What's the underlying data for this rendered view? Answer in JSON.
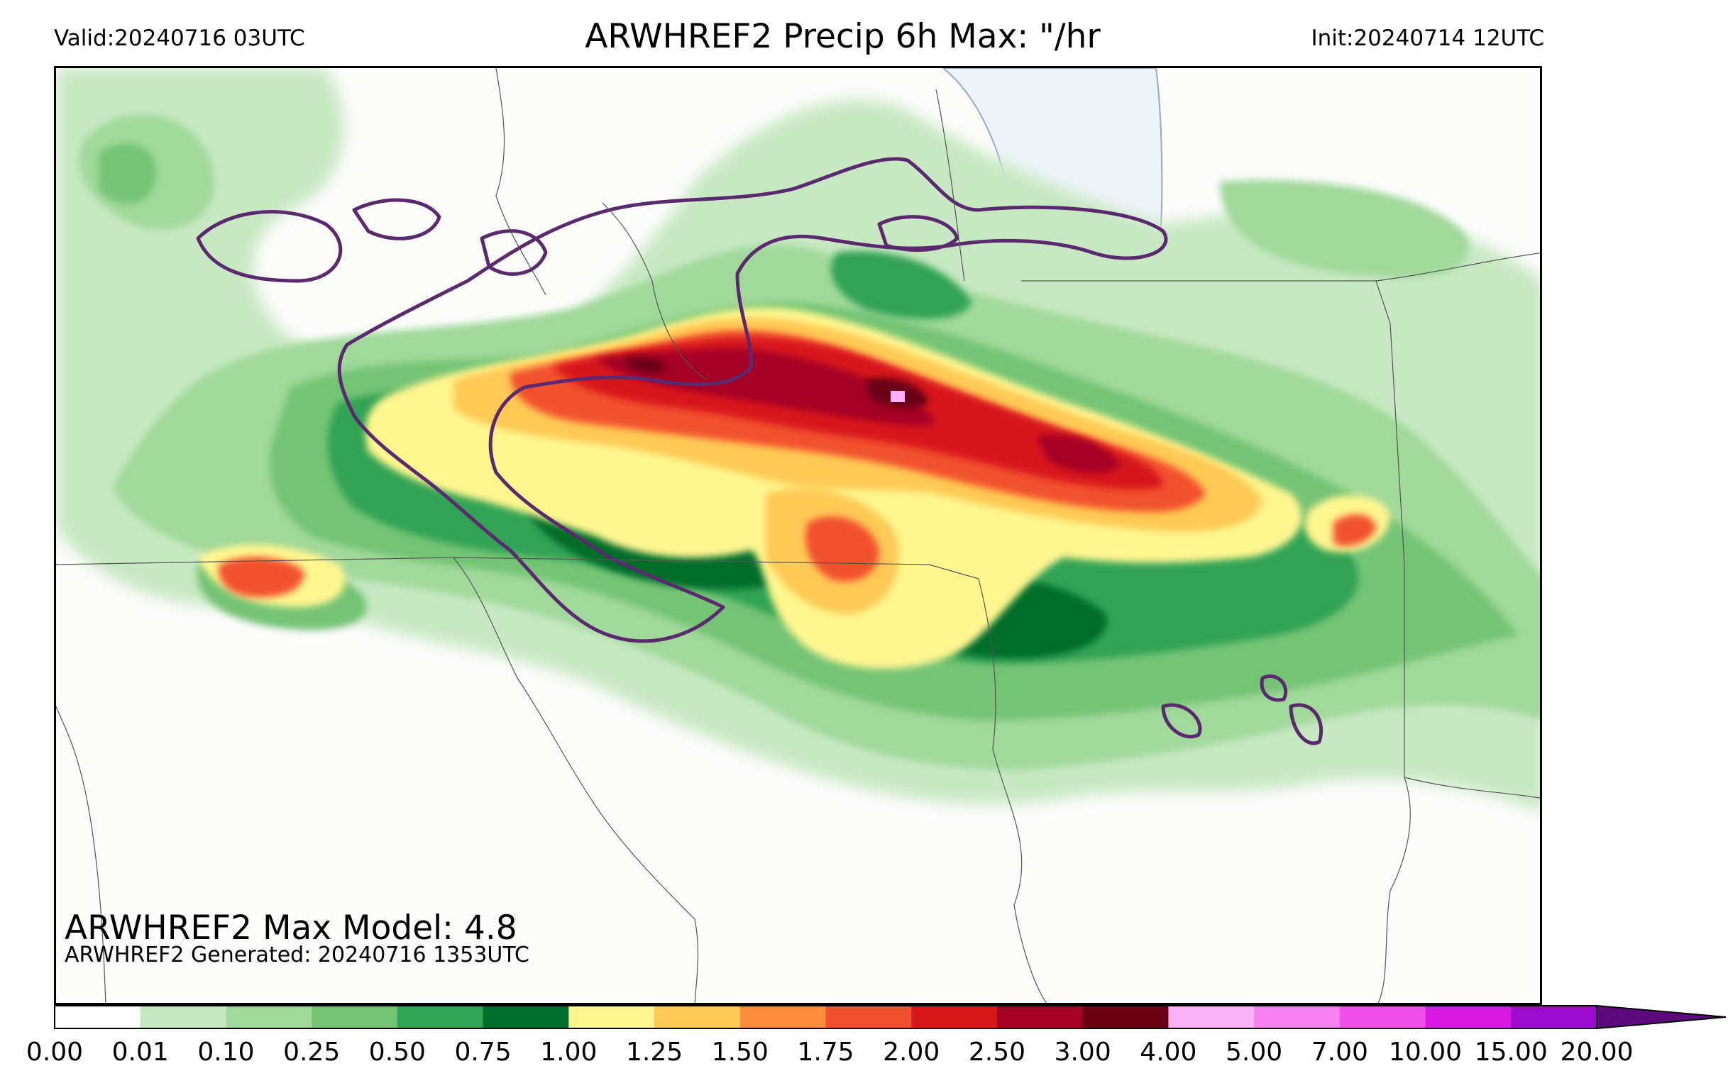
{
  "header": {
    "valid": "Valid:20240716 03UTC",
    "title": "ARWHREF2 Precip 6h Max: \"/hr",
    "init": "Init:20240714 12UTC"
  },
  "annotations": {
    "max_model": "ARWHREF2 Max Model: 4.8",
    "generated": "ARWHREF2 Generated: 20240716 1353UTC"
  },
  "colorbar": {
    "levels": [
      "0.00",
      "0.01",
      "0.10",
      "0.25",
      "0.50",
      "0.75",
      "1.00",
      "1.25",
      "1.50",
      "1.75",
      "2.00",
      "2.50",
      "3.00",
      "4.00",
      "5.00",
      "7.00",
      "10.00",
      "15.00",
      "20.00"
    ],
    "colors": [
      "#ffffff",
      "#c7e8c2",
      "#a1d99b",
      "#74c476",
      "#31a354",
      "#006d2c",
      "#fff68f",
      "#ffc954",
      "#fd8d3c",
      "#f2512f",
      "#d7191c",
      "#a50026",
      "#6b0013",
      "#f9b3f5",
      "#f582ef",
      "#f04ee9",
      "#d91ae2",
      "#9a0dcf"
    ],
    "extend_color": "#5e0a7f"
  },
  "map_colors": {
    "background": "#fcfcfb",
    "lake": "#eef3f8",
    "contour": "#5b2a6e",
    "border": "#555555"
  }
}
